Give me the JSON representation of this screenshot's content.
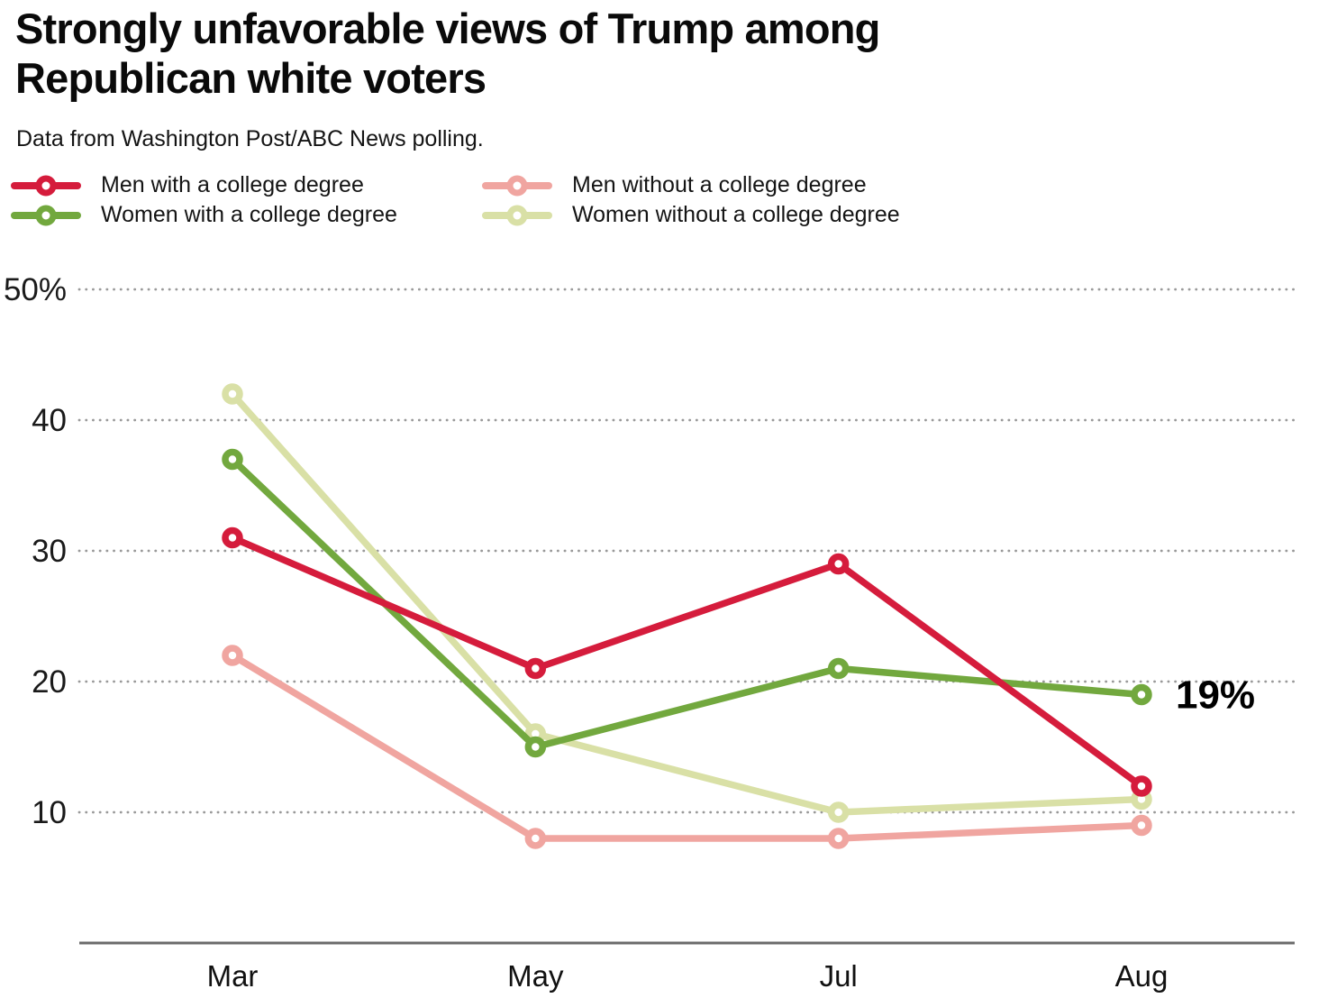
{
  "header": {
    "title_line1": "Strongly unfavorable views of Trump among",
    "title_line2": "Republican white voters",
    "subtitle": "Data from Washington Post/ABC News polling."
  },
  "legend": {
    "items": [
      {
        "label": "Men with a college degree",
        "color": "#d51c3c"
      },
      {
        "label": "Men without a college degree",
        "color": "#f0a5a0"
      },
      {
        "label": "Women with a college degree",
        "color": "#72a83e"
      },
      {
        "label": "Women without a college degree",
        "color": "#d9e0a6"
      }
    ]
  },
  "chart_data": {
    "type": "line",
    "title": "Strongly unfavorable views of Trump among Republican white voters",
    "subtitle": "Data from Washington Post/ABC News polling.",
    "categories": [
      "Mar",
      "May",
      "Jul",
      "Aug"
    ],
    "series": [
      {
        "name": "Women without a college degree",
        "color": "#d9e0a6",
        "values": [
          42,
          16,
          10,
          11
        ]
      },
      {
        "name": "Men without a college degree",
        "color": "#f0a5a0",
        "values": [
          22,
          8,
          8,
          9
        ]
      },
      {
        "name": "Women with a college degree",
        "color": "#72a83e",
        "values": [
          37,
          15,
          21,
          19
        ]
      },
      {
        "name": "Men with a college degree",
        "color": "#d51c3c",
        "values": [
          31,
          21,
          29,
          12
        ]
      }
    ],
    "yticks": [
      {
        "value": 50,
        "label": "50%"
      },
      {
        "value": 40,
        "label": "40"
      },
      {
        "value": 30,
        "label": "30"
      },
      {
        "value": 20,
        "label": "20"
      },
      {
        "value": 10,
        "label": "10"
      }
    ],
    "ylim": [
      0,
      50
    ],
    "grid": "dotted-horizontal",
    "legend_position": "top-left",
    "annotation": {
      "text": "19%",
      "series": "Women with a college degree",
      "category": "Aug"
    }
  }
}
